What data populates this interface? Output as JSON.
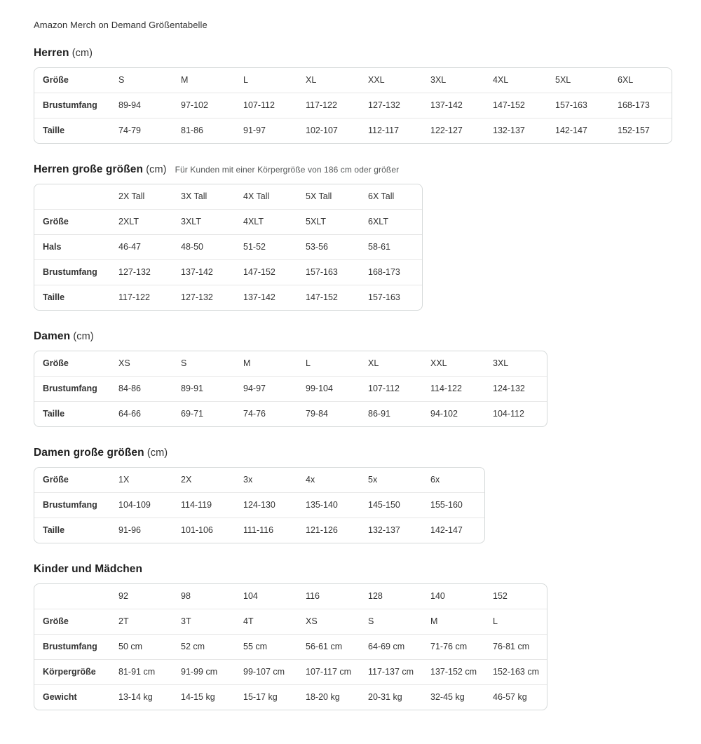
{
  "doc_title": "Amazon Merch on Demand Größentabelle",
  "colors": {
    "text": "#333333",
    "heading": "#1f1f1f",
    "note": "#565959",
    "table-border": "#d5d9d9",
    "row-line": "#e7e7e7",
    "bg": "#ffffff"
  },
  "sections": [
    {
      "heading": "Herren",
      "unit": "(cm)",
      "note": "",
      "table": {
        "rows": [
          {
            "label": "Größe",
            "cells": [
              "S",
              "M",
              "L",
              "XL",
              "XXL",
              "3XL",
              "4XL",
              "5XL",
              "6XL"
            ]
          },
          {
            "label": "Brustumfang",
            "cells": [
              "89-94",
              "97-102",
              "107-112",
              "117-122",
              "127-132",
              "137-142",
              "147-152",
              "157-163",
              "168-173"
            ]
          },
          {
            "label": "Taille",
            "cells": [
              "74-79",
              "81-86",
              "91-97",
              "102-107",
              "112-117",
              "122-127",
              "132-137",
              "142-147",
              "152-157"
            ]
          }
        ]
      }
    },
    {
      "heading": "Herren große größen",
      "unit": "(cm)",
      "note": "Für Kunden mit einer Körpergröße von 186 cm oder größer",
      "table": {
        "rows": [
          {
            "label": "",
            "cells": [
              "2X Tall",
              "3X Tall",
              "4X Tall",
              "5X Tall",
              "6X Tall"
            ]
          },
          {
            "label": "Größe",
            "cells": [
              "2XLT",
              "3XLT",
              "4XLT",
              "5XLT",
              "6XLT"
            ]
          },
          {
            "label": "Hals",
            "cells": [
              "46-47",
              "48-50",
              "51-52",
              "53-56",
              "58-61"
            ]
          },
          {
            "label": "Brustumfang",
            "cells": [
              "127-132",
              "137-142",
              "147-152",
              "157-163",
              "168-173"
            ]
          },
          {
            "label": "Taille",
            "cells": [
              "117-122",
              "127-132",
              "137-142",
              "147-152",
              "157-163"
            ]
          }
        ]
      }
    },
    {
      "heading": "Damen",
      "unit": "(cm)",
      "note": "",
      "table": {
        "rows": [
          {
            "label": "Größe",
            "cells": [
              "XS",
              "S",
              "M",
              "L",
              "XL",
              "XXL",
              "3XL"
            ]
          },
          {
            "label": "Brustumfang",
            "cells": [
              "84-86",
              "89-91",
              "94-97",
              "99-104",
              "107-112",
              "114-122",
              "124-132"
            ]
          },
          {
            "label": "Taille",
            "cells": [
              "64-66",
              "69-71",
              "74-76",
              "79-84",
              "86-91",
              "94-102",
              "104-112"
            ]
          }
        ]
      }
    },
    {
      "heading": "Damen große größen",
      "unit": "(cm)",
      "note": "",
      "table": {
        "rows": [
          {
            "label": "Größe",
            "cells": [
              "1X",
              "2X",
              "3x",
              "4x",
              "5x",
              "6x"
            ]
          },
          {
            "label": "Brustumfang",
            "cells": [
              "104-109",
              "114-119",
              "124-130",
              "135-140",
              "145-150",
              "155-160"
            ]
          },
          {
            "label": "Taille",
            "cells": [
              "91-96",
              "101-106",
              "111-116",
              "121-126",
              "132-137",
              "142-147"
            ]
          }
        ]
      }
    },
    {
      "heading": "Kinder und Mädchen",
      "unit": "",
      "note": "",
      "table": {
        "rows": [
          {
            "label": "",
            "cells": [
              "92",
              "98",
              "104",
              "116",
              "128",
              "140",
              "152"
            ]
          },
          {
            "label": "Größe",
            "cells": [
              "2T",
              "3T",
              "4T",
              "XS",
              "S",
              "M",
              "L"
            ]
          },
          {
            "label": "Brustumfang",
            "cells": [
              "50 cm",
              "52 cm",
              "55 cm",
              "56-61 cm",
              "64-69 cm",
              "71-76 cm",
              "76-81 cm"
            ]
          },
          {
            "label": "Körpergröße",
            "cells": [
              "81-91 cm",
              "91-99 cm",
              "99-107 cm",
              "107-117 cm",
              "117-137 cm",
              "137-152 cm",
              "152-163 cm"
            ]
          },
          {
            "label": "Gewicht",
            "cells": [
              "13-14 kg",
              "14-15 kg",
              "15-17 kg",
              "18-20 kg",
              "20-31 kg",
              "32-45 kg",
              "46-57 kg"
            ]
          }
        ]
      }
    }
  ]
}
